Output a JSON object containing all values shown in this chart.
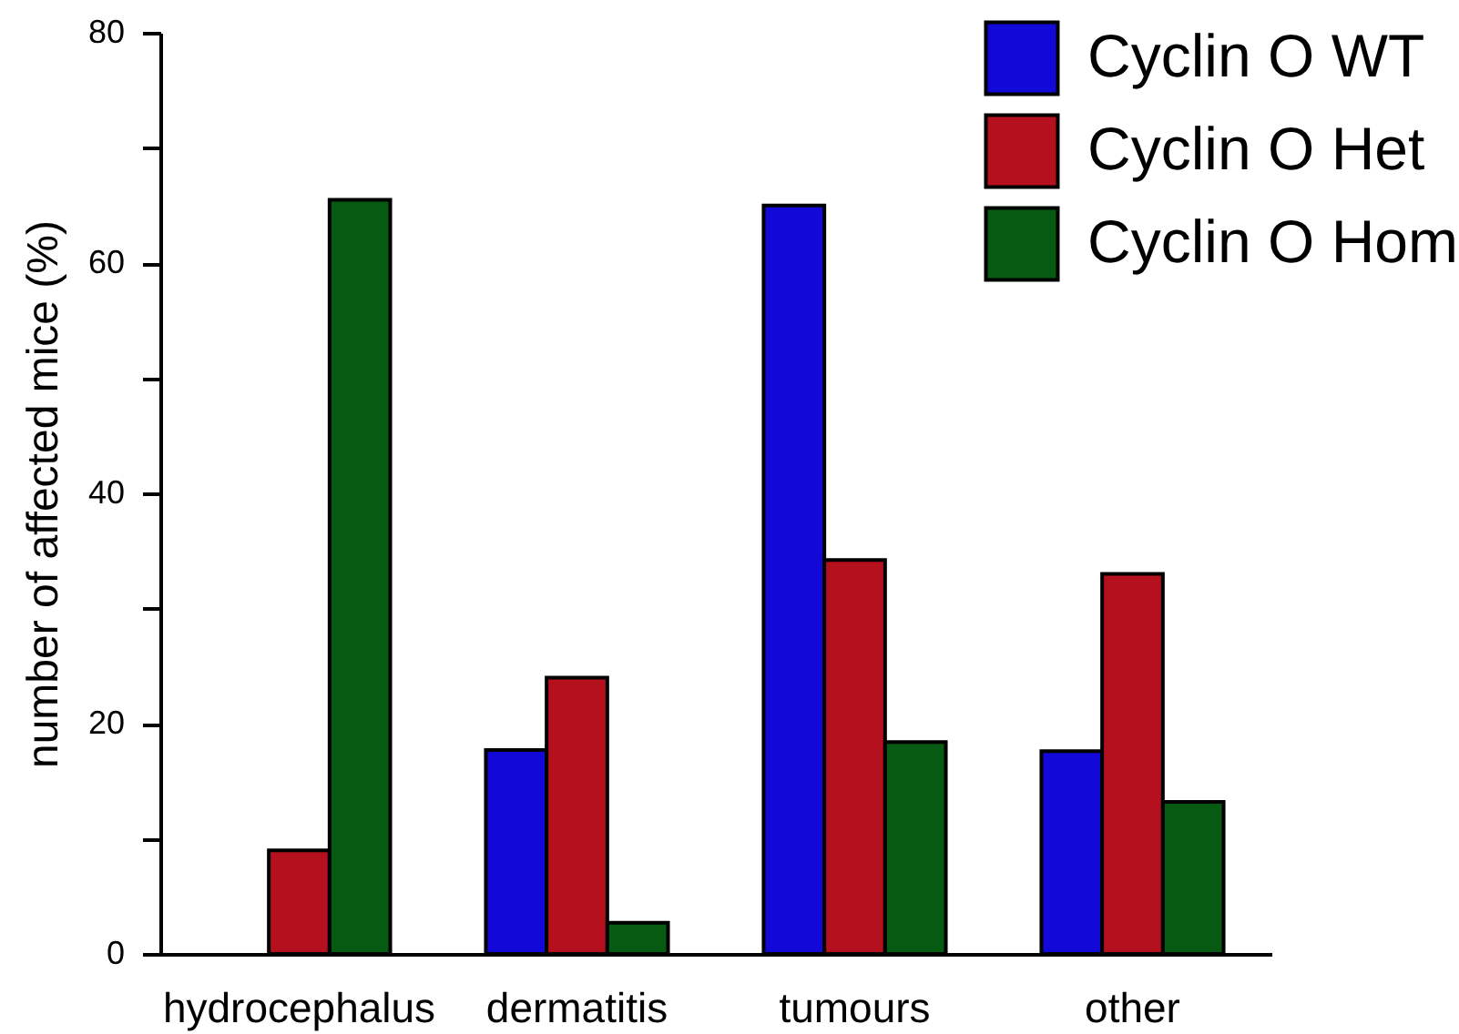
{
  "chart_data": {
    "type": "bar",
    "ylabel": "number of affected mice (%)",
    "categories": [
      "hydrocephalus",
      "dermatitis",
      "tumours",
      "other"
    ],
    "series": [
      {
        "name": "Cyclin O WT",
        "color": "#1208d8",
        "values": [
          null,
          17.7,
          65,
          17.6
        ]
      },
      {
        "name": "Cyclin O Het",
        "color": "#b5101e",
        "values": [
          9,
          24,
          34.2,
          33
        ]
      },
      {
        "name": "Cyclin O Hom",
        "color": "#065a12",
        "values": [
          65.5,
          2.7,
          18.4,
          13.2
        ]
      }
    ],
    "ylim": [
      0,
      80
    ],
    "yticks": [
      0,
      {
        "value": 10,
        "label": null
      },
      20,
      {
        "value": 30,
        "label": null
      },
      40,
      {
        "value": 50,
        "label": null
      },
      60,
      {
        "value": 70,
        "label": null
      },
      80
    ],
    "legend": "top right"
  }
}
